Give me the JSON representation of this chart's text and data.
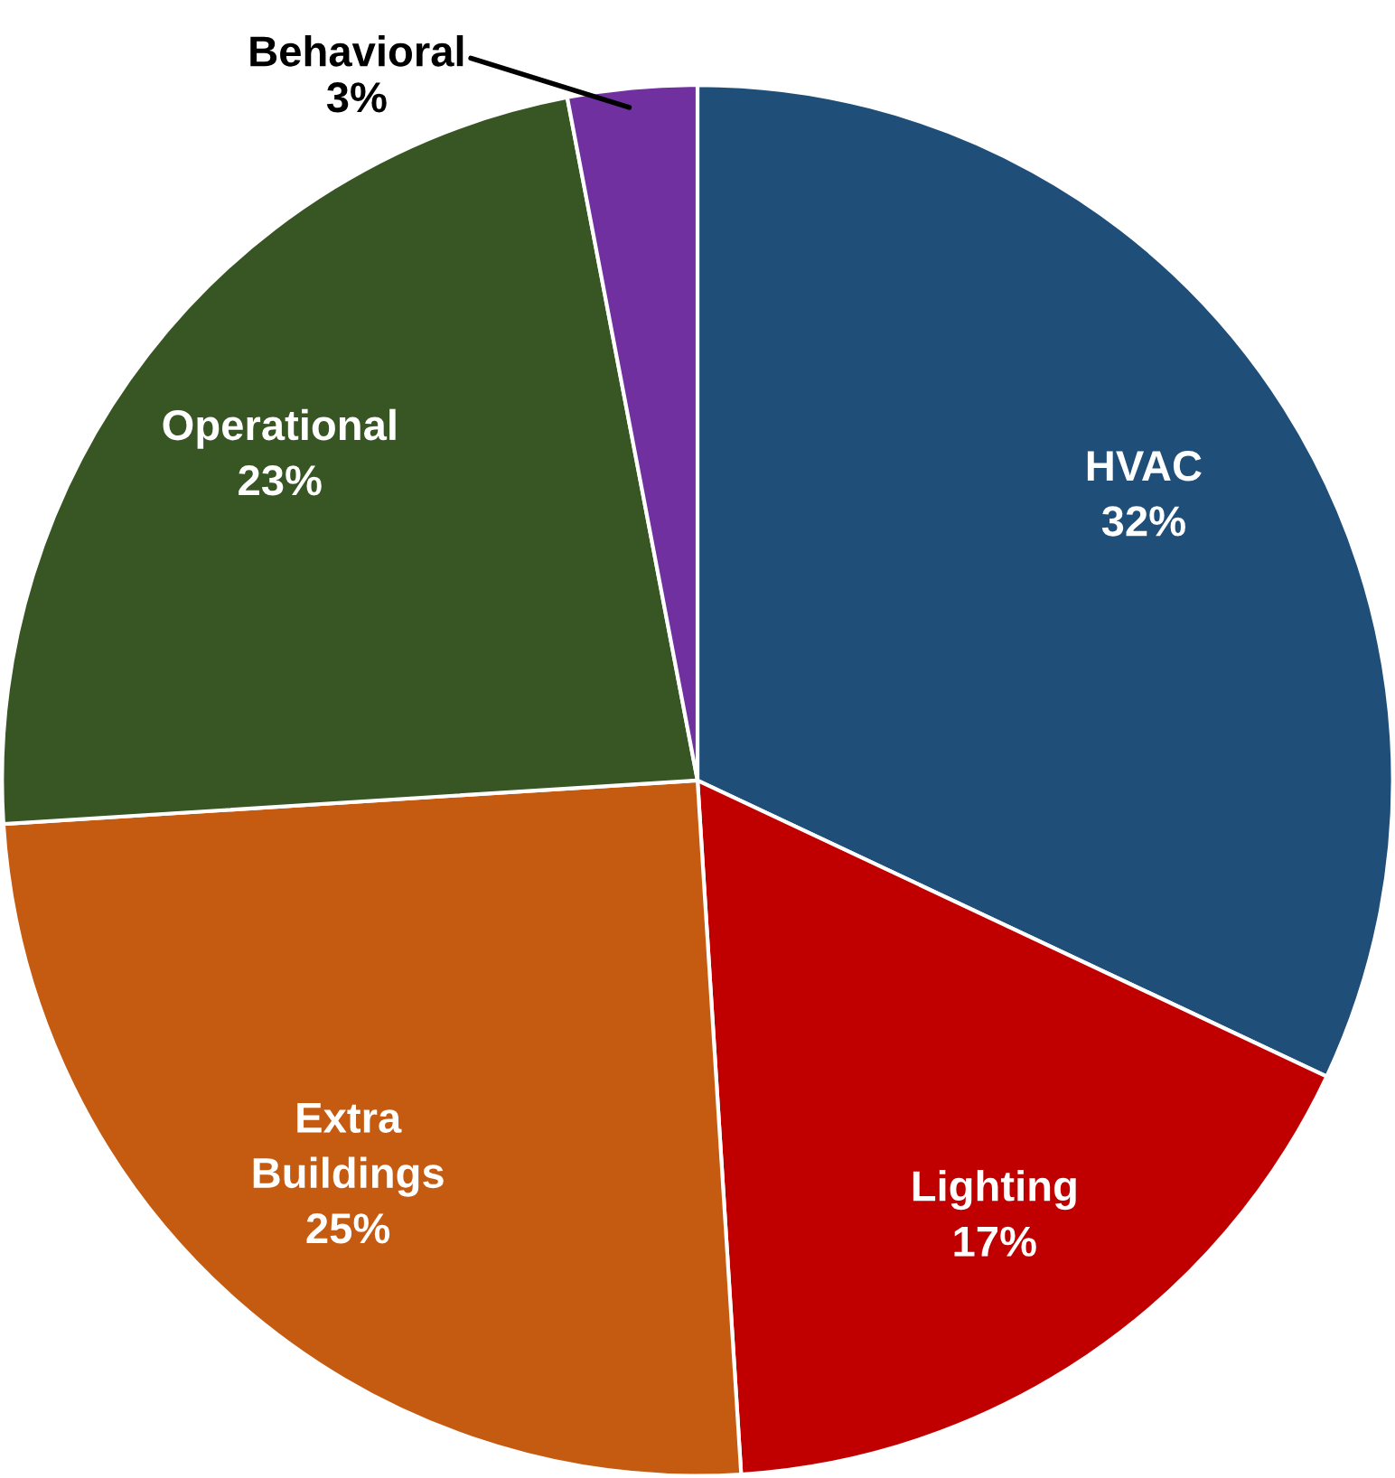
{
  "chart_data": {
    "type": "pie",
    "categories": [
      "HVAC",
      "Lighting",
      "Extra\nBuildings",
      "Operational",
      "Behavioral"
    ],
    "values": [
      32,
      17,
      25,
      23,
      3
    ],
    "value_labels": [
      "32%",
      "17%",
      "25%",
      "23%",
      "3%"
    ],
    "colors": [
      "#1f4e79",
      "#c00000",
      "#c55a11",
      "#375623",
      "#7030a0"
    ]
  }
}
